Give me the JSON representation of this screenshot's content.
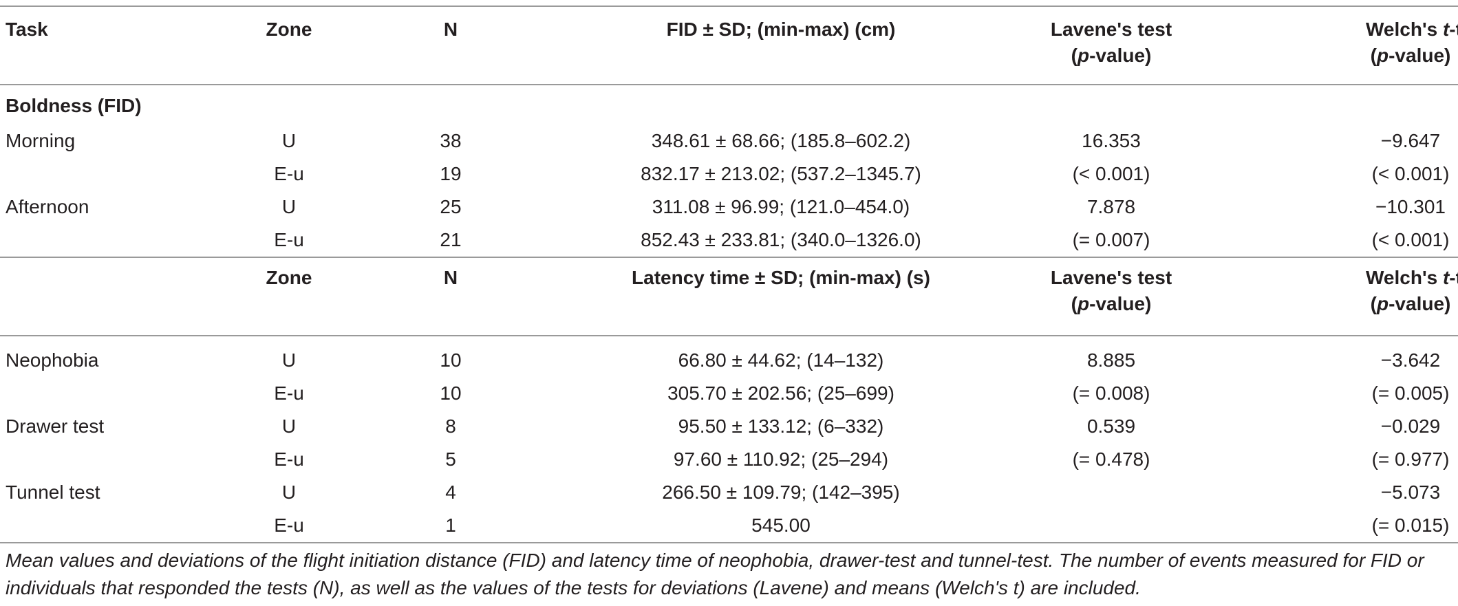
{
  "header1": {
    "task": "Task",
    "zone": "Zone",
    "n": "N",
    "fid": "FID ± SD; (min-max) (cm)",
    "lavene_line1": "Lavene's test",
    "lavene_p": "p",
    "lavene_suffix": "-value)",
    "welch_pre": "Welch's ",
    "welch_t": "t",
    "welch_post": "-test",
    "welch_p": "p",
    "welch_suffix": "-value)"
  },
  "section1": {
    "title": "Boldness (FID)",
    "rows": [
      {
        "task": "Morning",
        "zone": "U",
        "n": "38",
        "value": "348.61 ± 68.66; (185.8–602.2)",
        "lavene": "16.353",
        "welch": "−9.647"
      },
      {
        "task": "",
        "zone": "E-u",
        "n": "19",
        "value": "832.17 ± 213.02; (537.2–1345.7)",
        "lavene": "(< 0.001)",
        "welch": "(< 0.001)"
      },
      {
        "task": "Afternoon",
        "zone": "U",
        "n": "25",
        "value": "311.08 ± 96.99; (121.0–454.0)",
        "lavene": "7.878",
        "welch": "−10.301"
      },
      {
        "task": "",
        "zone": "E-u",
        "n": "21",
        "value": "852.43 ± 233.81; (340.0–1326.0)",
        "lavene": "(= 0.007)",
        "welch": "(< 0.001)"
      }
    ]
  },
  "header2": {
    "zone": "Zone",
    "n": "N",
    "latency": "Latency time ± SD; (min-max) (s)",
    "lavene_line1": "Lavene's test",
    "lavene_p": "p",
    "lavene_suffix": "-value)",
    "welch_pre": "Welch's ",
    "welch_t": "t",
    "welch_post": "-test",
    "welch_p": "p",
    "welch_suffix": "-value)"
  },
  "section2": {
    "rows": [
      {
        "task": "Neophobia",
        "zone": "U",
        "n": "10",
        "value": "66.80 ± 44.62; (14–132)",
        "lavene": "8.885",
        "welch": "−3.642"
      },
      {
        "task": "",
        "zone": "E-u",
        "n": "10",
        "value": "305.70 ± 202.56; (25–699)",
        "lavene": "(= 0.008)",
        "welch": "(= 0.005)"
      },
      {
        "task": "Drawer test",
        "zone": "U",
        "n": "8",
        "value": "95.50 ± 133.12; (6–332)",
        "lavene": "0.539",
        "welch": "−0.029"
      },
      {
        "task": "",
        "zone": "E-u",
        "n": "5",
        "value": "97.60 ± 110.92; (25–294)",
        "lavene": "(= 0.478)",
        "welch": "(= 0.977)"
      },
      {
        "task": "Tunnel test",
        "zone": "U",
        "n": "4",
        "value": "266.50 ± 109.79; (142–395)",
        "lavene": "",
        "welch": "−5.073"
      },
      {
        "task": "",
        "zone": "E-u",
        "n": "1",
        "value": "545.00",
        "lavene": "",
        "welch": "(= 0.015)"
      }
    ]
  },
  "caption": "Mean values and deviations of the flight initiation distance (FID) and latency time of neophobia, drawer-test and tunnel-test. The number of events measured for FID or individuals that responded the tests (N), as well as the values of the tests for deviations (Lavene) and means (Welch's t) are included."
}
